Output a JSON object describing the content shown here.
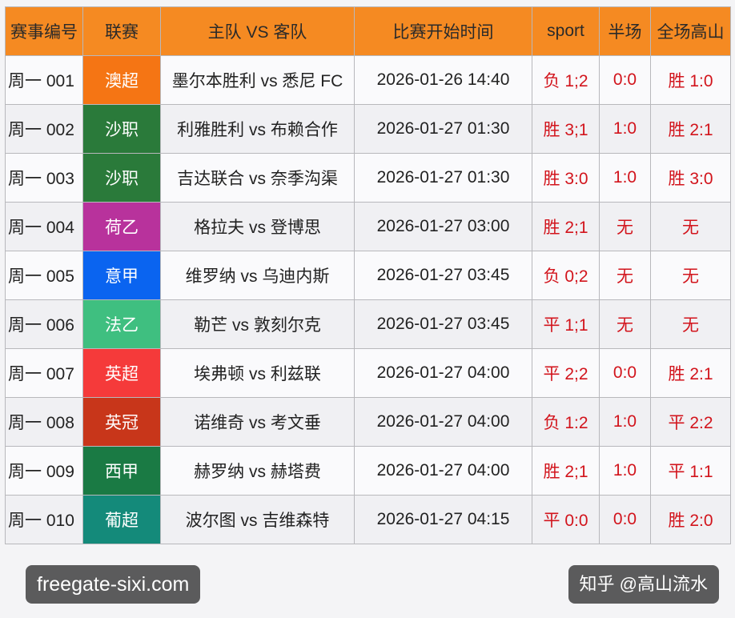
{
  "headers": [
    "赛事编号",
    "联赛",
    "主队 VS 客队",
    "比赛开始时间",
    "sport",
    "半场",
    "全场高山"
  ],
  "rows": [
    {
      "id": "周一 001",
      "league": "澳超",
      "color": "#f57514",
      "match": "墨尔本胜利 vs 悉尼 FC",
      "time": "2026-01-26 14:40",
      "sport": "负 1;2",
      "half": "0:0",
      "full": "胜 1:0"
    },
    {
      "id": "周一 002",
      "league": "沙职",
      "color": "#2a7a3a",
      "match": "利雅胜利 vs 布赖合作",
      "time": "2026-01-27 01:30",
      "sport": "胜 3;1",
      "half": "1:0",
      "full": "胜 2:1"
    },
    {
      "id": "周一 003",
      "league": "沙职",
      "color": "#2a7a3a",
      "match": "吉达联合 vs 奈季沟渠",
      "time": "2026-01-27 01:30",
      "sport": "胜 3:0",
      "half": "1:0",
      "full": "胜 3:0"
    },
    {
      "id": "周一 004",
      "league": "荷乙",
      "color": "#b8329c",
      "match": "格拉夫 vs 登博思",
      "time": "2026-01-27 03:00",
      "sport": "胜 2;1",
      "half": "无",
      "full": "无"
    },
    {
      "id": "周一 005",
      "league": "意甲",
      "color": "#0a64f0",
      "match": "维罗纳 vs 乌迪内斯",
      "time": "2026-01-27 03:45",
      "sport": "负 0;2",
      "half": "无",
      "full": "无"
    },
    {
      "id": "周一 006",
      "league": "法乙",
      "color": "#3fbf80",
      "match": "勒芒 vs 敦刻尔克",
      "time": "2026-01-27 03:45",
      "sport": "平 1;1",
      "half": "无",
      "full": "无"
    },
    {
      "id": "周一 007",
      "league": "英超",
      "color": "#f53a3a",
      "match": "埃弗顿 vs 利兹联",
      "time": "2026-01-27 04:00",
      "sport": "平 2;2",
      "half": "0:0",
      "full": "胜 2:1"
    },
    {
      "id": "周一 008",
      "league": "英冠",
      "color": "#c8361a",
      "match": "诺维奇 vs 考文垂",
      "time": "2026-01-27 04:00",
      "sport": "负 1:2",
      "half": "1:0",
      "full": "平 2:2"
    },
    {
      "id": "周一 009",
      "league": "西甲",
      "color": "#1a7a44",
      "match": "赫罗纳 vs 赫塔费",
      "time": "2026-01-27 04:00",
      "sport": "胜 2;1",
      "half": "1:0",
      "full": "平 1:1"
    },
    {
      "id": "周一 010",
      "league": "葡超",
      "color": "#148a7a",
      "match": "波尔图 vs 吉维森特",
      "time": "2026-01-27 04:15",
      "sport": "平 0:0",
      "half": "0:0",
      "full": "胜 2:0"
    }
  ],
  "watermarks": {
    "site": "freegate-sixi.com",
    "zhihu": "知乎 @高山流水"
  }
}
